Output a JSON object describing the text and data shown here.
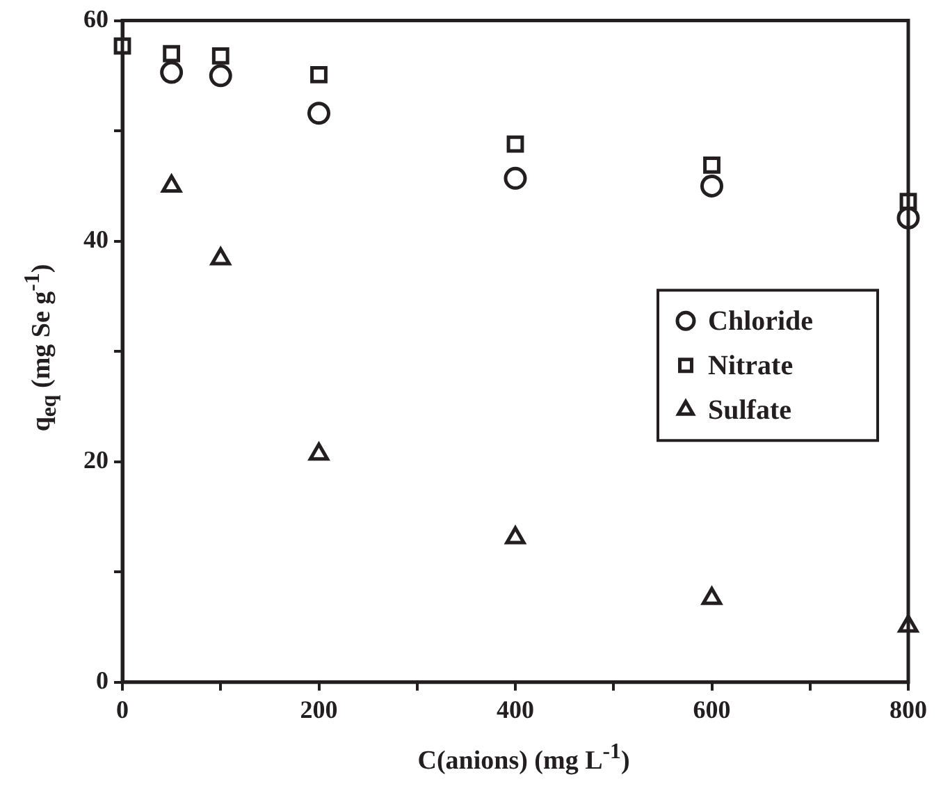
{
  "chart_data": {
    "type": "scatter",
    "xlabel": "C(anions)  (mg L$^{-1}$)",
    "ylabel": "q$_{eq}$ (mg Se g$^{-1}$)",
    "x": [
      0,
      50,
      100,
      200,
      400,
      600,
      800
    ],
    "series": [
      {
        "name": "Chloride",
        "color": "#231f20",
        "marker": "circle",
        "values": [
          null,
          55.3,
          55.0,
          51.6,
          45.7,
          45.0,
          42.1
        ]
      },
      {
        "name": "Nitrate",
        "color": "#231f20",
        "marker": "square",
        "values": [
          57.7,
          57.0,
          56.8,
          55.1,
          48.8,
          46.9,
          43.6
        ]
      },
      {
        "name": "Sulfate",
        "color": "#231f20",
        "marker": "triangle",
        "values": [
          null,
          45.0,
          38.4,
          20.7,
          13.1,
          7.6,
          5.1
        ]
      }
    ],
    "xlim": [
      0,
      800
    ],
    "xticks": [
      0,
      {
        "value": 100,
        "label": null
      },
      200,
      {
        "value": 300,
        "label": null
      },
      400,
      {
        "value": 500,
        "label": null
      },
      600,
      {
        "value": 700,
        "label": null
      },
      800
    ],
    "ylim": [
      0,
      60
    ],
    "yticks": [
      0,
      {
        "value": 10,
        "label": null
      },
      20,
      {
        "value": 30,
        "label": null
      },
      40,
      {
        "value": 50,
        "label": null
      },
      60
    ],
    "grid": false,
    "legend": "right"
  }
}
